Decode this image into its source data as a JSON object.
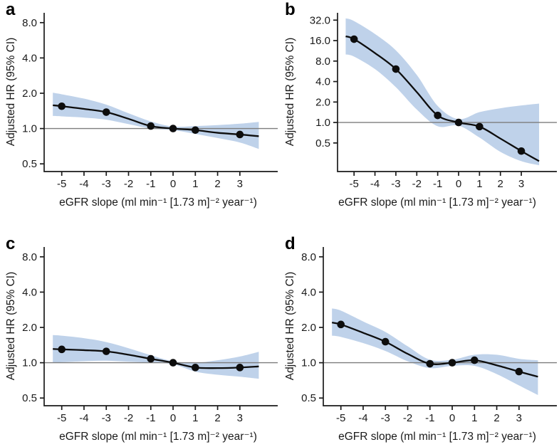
{
  "figure": {
    "colors": {
      "band": "#bfd2ea",
      "curve": "#0d0d0d",
      "marker": "#0d0d0d",
      "reference_line": "#7d7d7d",
      "axis": "#1a1a1a"
    }
  },
  "chart_data": [
    {
      "type": "line",
      "panel_label": "a",
      "xlabel": "eGFR slope (ml min⁻¹ [1.73 m]⁻² year⁻¹)",
      "ylabel": "Adjusted HR (95% CI)",
      "y_scale": "log",
      "x_ticks": [
        -5,
        -4,
        -3,
        -2,
        -1,
        0,
        1,
        2,
        3
      ],
      "y_ticks": [
        0.5,
        1.0,
        2.0,
        4.0,
        8.0
      ],
      "xlim": [
        -5.79,
        4.7
      ],
      "ylim": [
        0.43,
        9.7
      ],
      "ref_line": 1.0,
      "x": [
        -5.4,
        -5,
        -4,
        -3,
        -2,
        -1,
        0,
        1,
        2,
        3,
        3.85
      ],
      "hr": [
        1.58,
        1.55,
        1.47,
        1.38,
        1.21,
        1.05,
        1.0,
        0.97,
        0.92,
        0.89,
        0.86
      ],
      "ci_hi": [
        2.02,
        1.96,
        1.8,
        1.6,
        1.35,
        1.15,
        1.04,
        1.05,
        1.07,
        1.1,
        1.14
      ],
      "ci_lo": [
        1.28,
        1.27,
        1.24,
        1.19,
        1.09,
        1.0,
        0.97,
        0.9,
        0.83,
        0.76,
        0.67
      ],
      "marker_x": [
        -5,
        -3,
        -1,
        0,
        1,
        3
      ]
    },
    {
      "type": "line",
      "panel_label": "b",
      "xlabel": "eGFR slope (ml min⁻¹ [1.73 m]⁻² year⁻¹)",
      "ylabel": "Adjusted HR (95% CI)",
      "y_scale": "log",
      "x_ticks": [
        -5,
        -4,
        -3,
        -2,
        -1,
        0,
        1,
        2,
        3
      ],
      "y_ticks": [
        0.5,
        1.0,
        2.0,
        4.0,
        8.0,
        16.0,
        32.0
      ],
      "xlim": [
        -5.79,
        4.7
      ],
      "ylim": [
        0.19,
        41
      ],
      "ref_line": 1.0,
      "x": [
        -5.4,
        -5,
        -4,
        -3,
        -2,
        -1,
        0,
        1,
        2,
        3,
        3.85
      ],
      "hr": [
        18.5,
        16.8,
        10.5,
        6.1,
        2.8,
        1.27,
        1.0,
        0.87,
        0.58,
        0.38,
        0.27
      ],
      "ci_hi": [
        34,
        31,
        20,
        11.5,
        5.0,
        1.75,
        1.12,
        1.42,
        1.62,
        1.78,
        1.9
      ],
      "ci_lo": [
        10.0,
        9.3,
        6.1,
        3.3,
        1.55,
        0.88,
        0.9,
        0.6,
        0.37,
        0.27,
        0.235
      ],
      "marker_x": [
        -5,
        -3,
        -1,
        0,
        1,
        3
      ]
    },
    {
      "type": "line",
      "panel_label": "c",
      "xlabel": "eGFR slope (ml min⁻¹ [1.73 m]⁻² year⁻¹)",
      "ylabel": "Adjusted HR (95% CI)",
      "y_scale": "log",
      "x_ticks": [
        -5,
        -4,
        -3,
        -2,
        -1,
        0,
        1,
        2,
        3
      ],
      "y_ticks": [
        0.5,
        1.0,
        2.0,
        4.0,
        8.0
      ],
      "xlim": [
        -5.79,
        4.7
      ],
      "ylim": [
        0.43,
        9.7
      ],
      "ref_line": 1.0,
      "x": [
        -5.4,
        -5,
        -4,
        -3,
        -2,
        -1,
        0,
        1,
        2,
        3,
        3.85
      ],
      "hr": [
        1.31,
        1.3,
        1.28,
        1.25,
        1.17,
        1.08,
        1.0,
        0.91,
        0.9,
        0.91,
        0.93
      ],
      "ci_hi": [
        1.72,
        1.7,
        1.62,
        1.5,
        1.33,
        1.16,
        1.03,
        1.0,
        1.05,
        1.13,
        1.24
      ],
      "ci_lo": [
        1.0,
        1.01,
        1.03,
        1.04,
        1.02,
        1.0,
        0.97,
        0.84,
        0.79,
        0.76,
        0.73
      ],
      "marker_x": [
        -5,
        -3,
        -1,
        0,
        1,
        3
      ]
    },
    {
      "type": "line",
      "panel_label": "d",
      "xlabel": "eGFR slope (ml min⁻¹ [1.73 m]⁻² year⁻¹)",
      "ylabel": "Adjusted HR (95% CI)",
      "y_scale": "log",
      "x_ticks": [
        -5,
        -4,
        -3,
        -2,
        -1,
        0,
        1,
        2,
        3
      ],
      "y_ticks": [
        0.5,
        1.0,
        2.0,
        4.0,
        8.0
      ],
      "xlim": [
        -5.79,
        4.7
      ],
      "ylim": [
        0.43,
        9.7
      ],
      "ref_line": 1.0,
      "x": [
        -5.4,
        -5,
        -4,
        -3,
        -2,
        -1,
        0,
        1,
        2,
        3,
        3.85
      ],
      "hr": [
        2.2,
        2.12,
        1.8,
        1.51,
        1.19,
        0.98,
        1.0,
        1.05,
        0.95,
        0.84,
        0.76
      ],
      "ci_hi": [
        2.9,
        2.78,
        2.25,
        1.83,
        1.38,
        1.06,
        1.06,
        1.17,
        1.17,
        1.08,
        1.05
      ],
      "ci_lo": [
        1.7,
        1.66,
        1.47,
        1.26,
        1.03,
        0.9,
        0.94,
        0.94,
        0.8,
        0.64,
        0.53
      ],
      "marker_x": [
        -5,
        -3,
        -1,
        0,
        1,
        3
      ]
    }
  ]
}
